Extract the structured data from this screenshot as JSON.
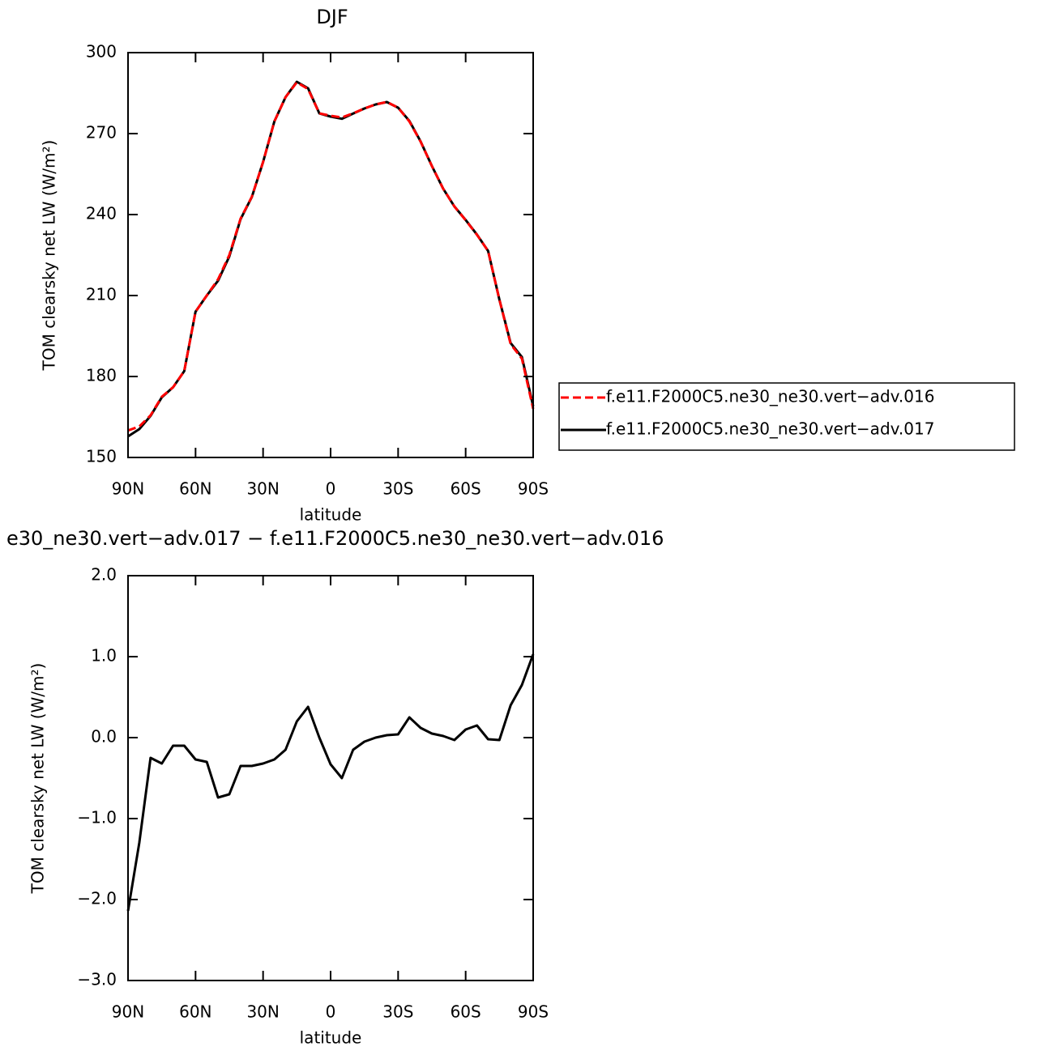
{
  "chart_data": [
    {
      "type": "line",
      "title": "DJF",
      "ylabel": "TOM clearsky net LW (W/m²)",
      "xlabel": "latitude",
      "x": [
        90,
        85,
        80,
        75,
        70,
        65,
        60,
        55,
        50,
        45,
        40,
        35,
        30,
        25,
        20,
        15,
        10,
        5,
        0,
        -5,
        -10,
        -15,
        -20,
        -25,
        -30,
        -35,
        -40,
        -45,
        -50,
        -55,
        -60,
        -65,
        -70,
        -75,
        -80,
        -85,
        -90
      ],
      "series": [
        {
          "name": "f.e11.F2000C5.ne30_ne30.vert−adv.016",
          "color": "#ff0000",
          "dashed": true,
          "values": [
            160,
            161.5,
            165.6,
            172.5,
            176,
            182,
            204,
            210,
            216,
            225,
            238.5,
            246.6,
            259.5,
            274.5,
            283.5,
            289,
            286.5,
            277.5,
            276.6,
            276,
            277.5,
            279.3,
            280.8,
            281.7,
            279.6,
            274.5,
            267,
            258,
            249.6,
            243,
            237.9,
            232.5,
            226.5,
            208.5,
            192,
            186.6,
            168
          ]
        },
        {
          "name": "f.e11.F2000C5.ne30_ne30.vert−adv.017",
          "color": "#000000",
          "dashed": false,
          "values": [
            157.8,
            160.5,
            165.4,
            172.3,
            176,
            182,
            204,
            210,
            215.5,
            224.5,
            238.3,
            246.5,
            259.5,
            274.5,
            283.5,
            289.2,
            286.8,
            277.5,
            276.3,
            275.5,
            277.4,
            279.3,
            280.8,
            281.7,
            279.6,
            274.7,
            267.1,
            258,
            249.6,
            243,
            238,
            232.6,
            226.5,
            208.5,
            192.4,
            187.2,
            169
          ]
        }
      ],
      "xlim": [
        90,
        -90
      ],
      "xticks": [
        {
          "value": 90,
          "label": "90N"
        },
        {
          "value": 60,
          "label": "60N"
        },
        {
          "value": 30,
          "label": "30N"
        },
        0,
        {
          "value": -30,
          "label": "30S"
        },
        {
          "value": -60,
          "label": "60S"
        },
        {
          "value": -90,
          "label": "90S"
        }
      ],
      "ylim": [
        150,
        300
      ],
      "yticks": [
        150,
        180,
        210,
        240,
        270,
        300
      ],
      "legend": "right"
    },
    {
      "type": "line",
      "title": "e30_ne30.vert−adv.017 − f.e11.F2000C5.ne30_ne30.vert−adv.016",
      "ylabel": "TOM clearsky net LW (W/m²)",
      "xlabel": "latitude",
      "x": [
        90,
        85,
        80,
        75,
        70,
        65,
        60,
        55,
        50,
        45,
        40,
        35,
        30,
        25,
        20,
        15,
        10,
        5,
        0,
        -5,
        -10,
        -15,
        -20,
        -25,
        -30,
        -35,
        -40,
        -45,
        -50,
        -55,
        -60,
        -65,
        -70,
        -75,
        -80,
        -85,
        -90
      ],
      "values": [
        -2.14,
        -1.3,
        -0.25,
        -0.32,
        -0.1,
        -0.1,
        -0.27,
        -0.3,
        -0.74,
        -0.7,
        -0.35,
        -0.35,
        -0.32,
        -0.27,
        -0.15,
        0.2,
        0.38,
        0,
        -0.33,
        -0.5,
        -0.15,
        -0.05,
        0,
        0.03,
        0.04,
        0.25,
        0.12,
        0.05,
        0.02,
        -0.03,
        0.1,
        0.15,
        -0.02,
        -0.03,
        0.4,
        0.65,
        1.03
      ],
      "color": "#000000",
      "xlim": [
        90,
        -90
      ],
      "xticks": [
        {
          "value": 90,
          "label": "90N"
        },
        {
          "value": 60,
          "label": "60N"
        },
        {
          "value": 30,
          "label": "30N"
        },
        0,
        {
          "value": -30,
          "label": "30S"
        },
        {
          "value": -60,
          "label": "60S"
        },
        {
          "value": -90,
          "label": "90S"
        }
      ],
      "ylim": [
        -3,
        2
      ],
      "yticks": [
        {
          "value": -3,
          "label": "−3.0"
        },
        {
          "value": -2,
          "label": "−2.0"
        },
        {
          "value": -1,
          "label": "−1.0"
        },
        {
          "value": 0,
          "label": "0.0"
        },
        {
          "value": 1,
          "label": "1.0"
        },
        {
          "value": 2,
          "label": "2.0"
        }
      ]
    }
  ]
}
